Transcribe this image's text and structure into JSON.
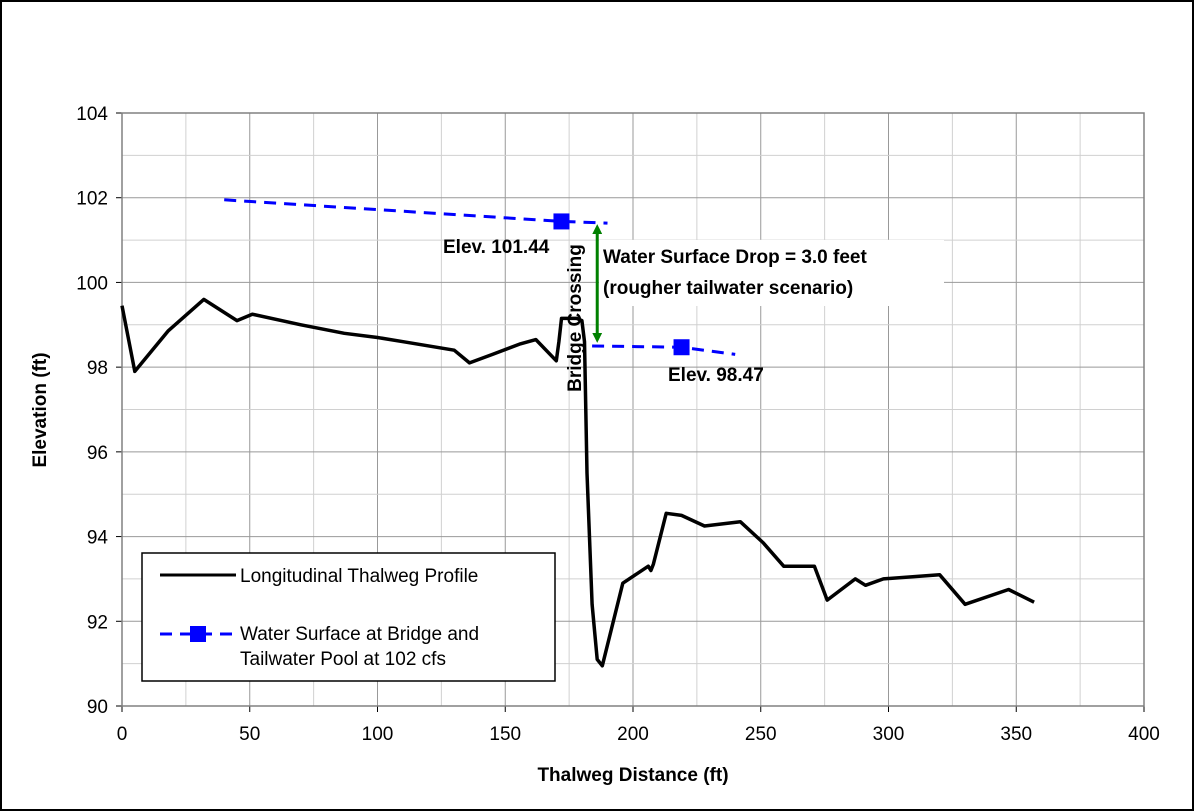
{
  "chart_data": {
    "type": "line",
    "title": "",
    "xlabel": "Thalweg Distance (ft)",
    "ylabel": "Elevation (ft)",
    "xlim": [
      0,
      400
    ],
    "ylim": [
      90,
      104
    ],
    "x_ticks": [
      "0",
      "50",
      "100",
      "150",
      "200",
      "250",
      "300",
      "350",
      "400"
    ],
    "y_ticks": [
      "90",
      "92",
      "94",
      "96",
      "98",
      "100",
      "102",
      "104"
    ],
    "grid": true,
    "legend_position": "bottom-left",
    "series": [
      {
        "name": "Longitudinal Thalweg Profile",
        "color": "#000000",
        "style": "solid",
        "x": [
          0,
          5,
          18,
          32,
          45,
          51,
          70,
          87,
          100,
          110,
          130,
          136,
          145,
          156,
          162,
          170,
          171,
          172,
          178,
          180,
          181,
          182,
          184,
          186,
          188,
          196,
          206,
          207,
          208,
          213,
          219,
          228,
          242,
          251,
          259,
          271,
          276,
          287,
          291,
          298,
          320,
          330,
          347,
          357
        ],
        "y": [
          99.45,
          97.9,
          98.85,
          99.6,
          99.1,
          99.25,
          99.0,
          98.8,
          98.7,
          98.6,
          98.4,
          98.1,
          98.3,
          98.55,
          98.65,
          98.15,
          98.6,
          99.15,
          99.15,
          99.1,
          98.6,
          95.5,
          92.4,
          91.1,
          90.95,
          92.9,
          93.3,
          93.2,
          93.35,
          94.55,
          94.5,
          94.25,
          94.35,
          93.85,
          93.3,
          93.3,
          92.5,
          93.0,
          92.85,
          93.0,
          93.1,
          92.4,
          92.75,
          92.45
        ]
      },
      {
        "name": "Water Surface at Bridge and Tailwater Pool at 102 cfs",
        "legend_lines": [
          "Water Surface at Bridge and",
          "Tailwater Pool at 102 cfs"
        ],
        "color": "#0000ff",
        "style": "dashed",
        "segments": [
          {
            "x": [
              40,
              172,
              190
            ],
            "y": [
              101.95,
              101.44,
              101.4
            ]
          },
          {
            "x": [
              184,
              219,
              240
            ],
            "y": [
              98.5,
              98.47,
              98.3
            ]
          }
        ],
        "markers": [
          {
            "x": 172,
            "y": 101.44
          },
          {
            "x": 219,
            "y": 98.47
          }
        ]
      }
    ],
    "annotations": {
      "elev_upper": "Elev. 101.44",
      "elev_lower": "Elev. 98.47",
      "drop_line1": "Water Surface Drop = 3.0 feet",
      "drop_line2": "(rougher tailwater scenario)",
      "bridge": "Bridge Crossing",
      "arrow_color": "#008000",
      "arrow_from": [
        186,
        101.4
      ],
      "arrow_to": [
        186,
        98.55
      ]
    }
  }
}
